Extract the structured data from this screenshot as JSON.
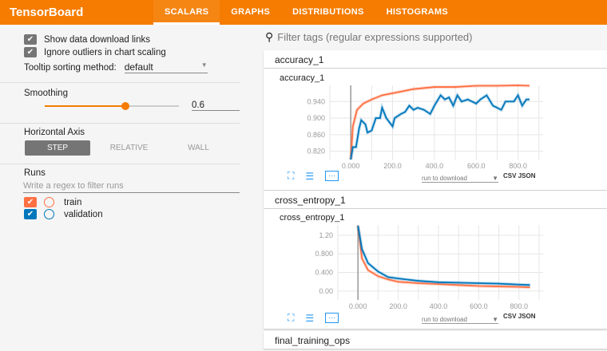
{
  "header": {
    "title": "TensorBoard",
    "tabs": [
      "SCALARS",
      "GRAPHS",
      "DISTRIBUTIONS",
      "HISTOGRAMS"
    ],
    "active_tab": "SCALARS",
    "color": "#f57c00"
  },
  "sidebar": {
    "show_download_links": {
      "label": "Show data download links",
      "checked": true
    },
    "ignore_outliers": {
      "label": "Ignore outliers in chart scaling",
      "checked": true
    },
    "tooltip_sorting": {
      "label": "Tooltip sorting method:",
      "value": "default"
    },
    "smoothing": {
      "label": "Smoothing",
      "value": "0.6",
      "fraction": 0.6
    },
    "horizontal_axis": {
      "label": "Horizontal Axis",
      "options": [
        "STEP",
        "RELATIVE",
        "WALL"
      ],
      "selected": "STEP"
    },
    "runs": {
      "label": "Runs",
      "filter_placeholder": "Write a regex to filter runs",
      "items": [
        {
          "name": "train",
          "color": "#ff7043",
          "checked": true
        },
        {
          "name": "validation",
          "color": "#0077bb",
          "checked": true
        }
      ]
    }
  },
  "main": {
    "search_placeholder": "Filter tags (regular expressions supported)",
    "groups": [
      "accuracy_1",
      "cross_entropy_1",
      "final_training_ops"
    ],
    "run_to_download": "run to download",
    "csv": "CSV",
    "json": "JSON"
  },
  "chart_data": [
    {
      "type": "line",
      "title": "accuracy_1",
      "xlabel": "",
      "ylabel": "",
      "xlim": [
        -100,
        920
      ],
      "ylim": [
        0.8,
        0.979
      ],
      "xticks": [
        "0.000",
        "200.0",
        "400.0",
        "600.0",
        "800.0"
      ],
      "yticks": [
        "0.820",
        "0.860",
        "0.900",
        "0.940"
      ],
      "grid": true,
      "series": [
        {
          "name": "train",
          "color": "#ff7043",
          "x": [
            0,
            10,
            30,
            60,
            100,
            150,
            200,
            300,
            400,
            500,
            600,
            700,
            800,
            855
          ],
          "y": [
            0.8,
            0.88,
            0.92,
            0.935,
            0.945,
            0.955,
            0.96,
            0.97,
            0.975,
            0.975,
            0.978,
            0.978,
            0.979,
            0.978
          ]
        },
        {
          "name": "validation",
          "color": "#0077bb",
          "x": [
            0,
            10,
            25,
            40,
            50,
            70,
            80,
            100,
            120,
            140,
            150,
            170,
            200,
            210,
            240,
            260,
            280,
            300,
            320,
            350,
            380,
            400,
            430,
            450,
            470,
            490,
            510,
            530,
            560,
            600,
            620,
            650,
            680,
            700,
            720,
            740,
            780,
            800,
            820,
            840,
            855
          ],
          "y": [
            0.8,
            0.83,
            0.83,
            0.875,
            0.895,
            0.885,
            0.865,
            0.87,
            0.9,
            0.9,
            0.925,
            0.9,
            0.88,
            0.9,
            0.91,
            0.915,
            0.93,
            0.92,
            0.925,
            0.92,
            0.91,
            0.93,
            0.955,
            0.945,
            0.95,
            0.93,
            0.955,
            0.94,
            0.945,
            0.935,
            0.945,
            0.955,
            0.93,
            0.925,
            0.92,
            0.94,
            0.94,
            0.955,
            0.93,
            0.945,
            0.945
          ]
        }
      ]
    },
    {
      "type": "line",
      "title": "cross_entropy_1",
      "xlabel": "",
      "ylabel": "",
      "xlim": [
        -100,
        920
      ],
      "ylim": [
        -0.19,
        1.42
      ],
      "xticks": [
        "0.000",
        "200.0",
        "400.0",
        "600.0",
        "800.0"
      ],
      "yticks": [
        "0.00",
        "0.400",
        "0.800",
        "1.20"
      ],
      "grid": true,
      "series": [
        {
          "name": "train",
          "color": "#ff7043",
          "x": [
            0,
            20,
            50,
            100,
            150,
            200,
            300,
            400,
            500,
            600,
            700,
            800,
            855
          ],
          "y": [
            1.4,
            0.7,
            0.45,
            0.32,
            0.25,
            0.2,
            0.17,
            0.15,
            0.13,
            0.11,
            0.1,
            0.09,
            0.08
          ]
        },
        {
          "name": "validation",
          "color": "#0077bb",
          "x": [
            0,
            20,
            50,
            100,
            150,
            200,
            300,
            400,
            500,
            600,
            700,
            800,
            855
          ],
          "y": [
            1.4,
            0.9,
            0.6,
            0.42,
            0.3,
            0.27,
            0.22,
            0.19,
            0.18,
            0.17,
            0.16,
            0.14,
            0.13
          ]
        }
      ]
    }
  ]
}
